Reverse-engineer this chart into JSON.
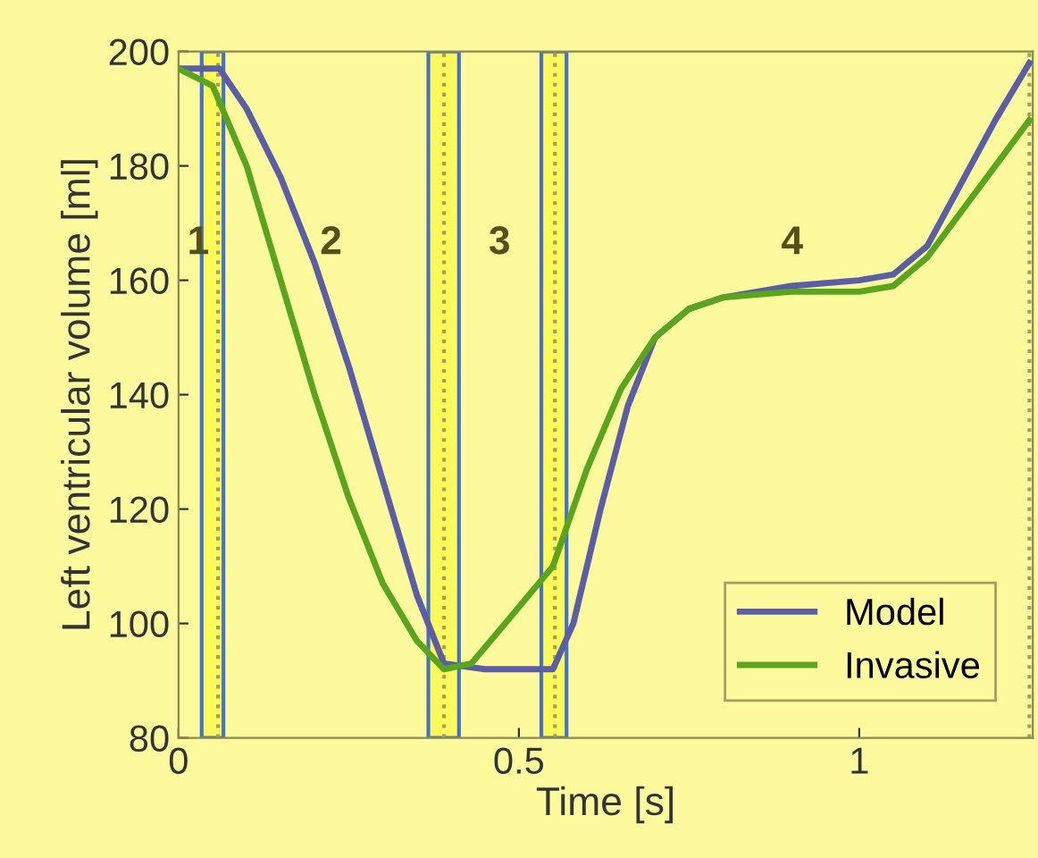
{
  "chart_data": {
    "type": "line",
    "xlabel": "Time [s]",
    "ylabel": "Left ventricular volume [ml]",
    "xlim": [
      0,
      1.255
    ],
    "xticks": [
      0,
      0.5,
      1
    ],
    "ylim": [
      80,
      200
    ],
    "yticks": [
      80,
      100,
      120,
      140,
      160,
      180,
      200
    ],
    "grid": false,
    "legend": "bottom right",
    "line_style": "solid",
    "series": [
      {
        "name": "Model",
        "color": "#5b5ea6",
        "x": [
          0,
          0.06,
          0.1,
          0.15,
          0.2,
          0.25,
          0.3,
          0.35,
          0.39,
          0.45,
          0.55,
          0.58,
          0.62,
          0.66,
          0.7,
          0.75,
          0.8,
          0.9,
          1.0,
          1.05,
          1.1,
          1.15,
          1.2,
          1.25
        ],
        "values": [
          197,
          197,
          190,
          178,
          163,
          145,
          125,
          105,
          93,
          92,
          92,
          100,
          120,
          138,
          150,
          155,
          157,
          159,
          160,
          161,
          166,
          177,
          188,
          198
        ]
      },
      {
        "name": "Invasive",
        "color": "#5aa51e",
        "x": [
          0,
          0.05,
          0.1,
          0.15,
          0.2,
          0.25,
          0.3,
          0.35,
          0.39,
          0.43,
          0.48,
          0.55,
          0.6,
          0.65,
          0.7,
          0.75,
          0.8,
          0.9,
          1.0,
          1.05,
          1.1,
          1.15,
          1.2,
          1.25
        ],
        "values": [
          197,
          194,
          180,
          160,
          140,
          122,
          107,
          97,
          92,
          93,
          100,
          110,
          127,
          141,
          150,
          155,
          157,
          158,
          158,
          159,
          164,
          172,
          180,
          188
        ]
      }
    ],
    "ref_lines": [
      {
        "axis": "x",
        "value": 0.058,
        "color": "#a0a060",
        "line_style": "dotted"
      },
      {
        "axis": "x",
        "value": 0.39,
        "color": "#a0a060",
        "line_style": "dotted"
      },
      {
        "axis": "x",
        "value": 0.553,
        "color": "#a0a060",
        "line_style": "dotted"
      },
      {
        "axis": "x",
        "value": 1.25,
        "color": "#a0a060",
        "line_style": "dotted"
      }
    ],
    "bands": [
      {
        "axis": "x",
        "from": 0.034,
        "to": 0.066,
        "color": "#fff95a"
      },
      {
        "axis": "x",
        "from": 0.367,
        "to": 0.412,
        "color": "#fff95a"
      },
      {
        "axis": "x",
        "from": 0.533,
        "to": 0.57,
        "color": "#fff95a"
      }
    ],
    "annotations": [
      "1",
      "2",
      "3",
      "4"
    ]
  }
}
